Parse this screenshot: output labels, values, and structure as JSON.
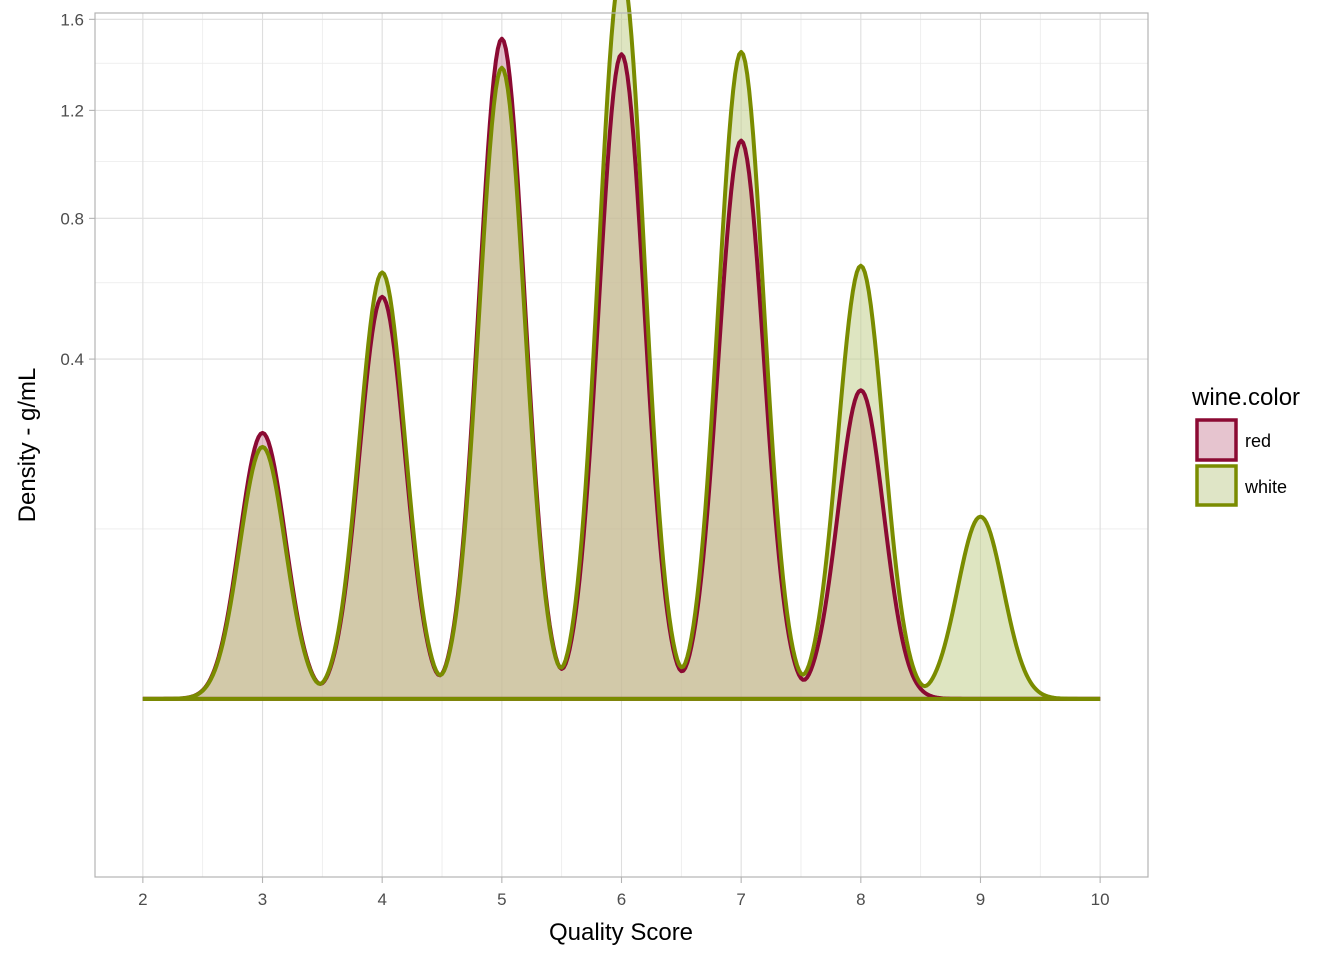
{
  "chart_data": {
    "type": "area",
    "xlabel": "Quality Score",
    "ylabel": "Density - g/mL",
    "xlim": [
      1.6,
      10.4
    ],
    "ylim": [
      -0.11,
      1.63
    ],
    "x_ticks": [
      2,
      3,
      4,
      5,
      6,
      7,
      8,
      9,
      10
    ],
    "y_ticks": [
      0.4,
      0.8,
      1.2,
      1.6
    ],
    "y_tick_labels": [
      "0.4",
      "0.8",
      "1.2",
      "1.6"
    ],
    "y_minor_gridlines": [
      0.1,
      0.6,
      1.0,
      1.4
    ],
    "grid": true,
    "legend": {
      "title": "wine.color",
      "position": "right"
    },
    "density_bandwidth": 0.135,
    "series": [
      {
        "name": "red",
        "line_color": "#8b0a33",
        "fill_color": "#ce8da1",
        "fill_opacity": 0.55,
        "peaks": [
          {
            "x": 3,
            "y": 0.245
          },
          {
            "x": 4,
            "y": 0.56
          },
          {
            "x": 5,
            "y": 1.51
          },
          {
            "x": 6,
            "y": 1.44
          },
          {
            "x": 7,
            "y": 1.08
          },
          {
            "x": 8,
            "y": 0.33
          }
        ]
      },
      {
        "name": "white",
        "line_color": "#7a8c00",
        "fill_color": "#c2d08e",
        "fill_opacity": 0.55,
        "peaks": [
          {
            "x": 3,
            "y": 0.22
          },
          {
            "x": 4,
            "y": 0.63
          },
          {
            "x": 5,
            "y": 1.38
          },
          {
            "x": 6,
            "y": 1.84
          },
          {
            "x": 7,
            "y": 1.45
          },
          {
            "x": 8,
            "y": 0.65
          },
          {
            "x": 9,
            "y": 0.115
          }
        ]
      }
    ]
  }
}
